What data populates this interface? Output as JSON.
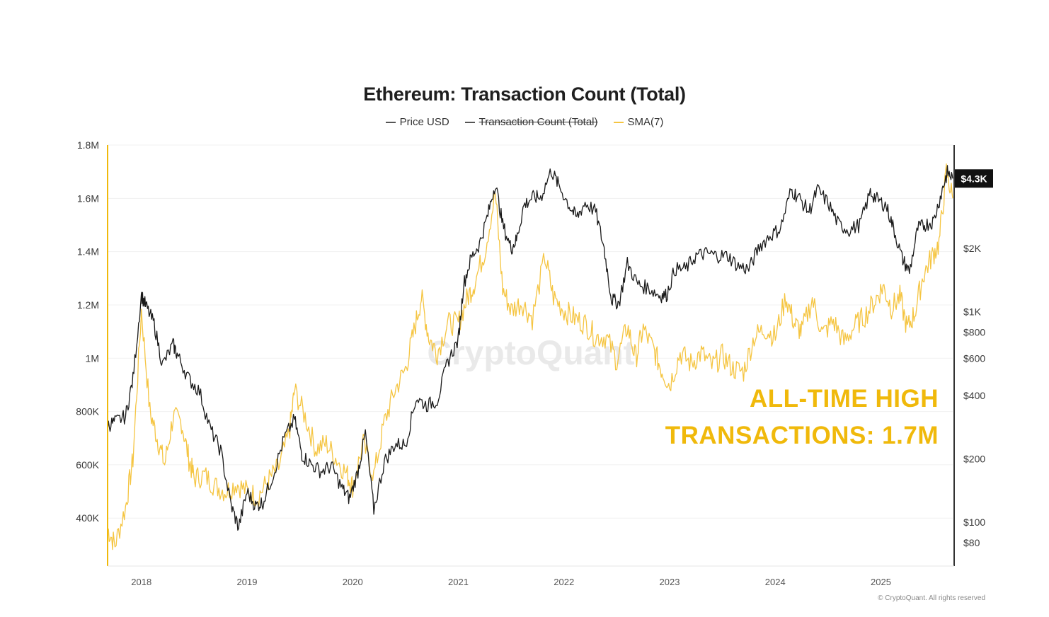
{
  "chart_data": {
    "type": "line",
    "title": "Ethereum: Transaction Count (Total)",
    "legend": [
      {
        "name": "Price USD",
        "color": "#555555",
        "struck": false
      },
      {
        "name": "Transaction Count (Total)",
        "color": "#555555",
        "struck": true
      },
      {
        "name": "SMA(7)",
        "color": "#f5c542",
        "struck": false
      }
    ],
    "left_axis": {
      "ticks": [
        {
          "value": 400000,
          "label": "400K"
        },
        {
          "value": 600000,
          "label": "600K"
        },
        {
          "value": 800000,
          "label": "800K"
        },
        {
          "value": 1000000,
          "label": "1M"
        },
        {
          "value": 1200000,
          "label": "1.2M"
        },
        {
          "value": 1400000,
          "label": "1.4M"
        },
        {
          "value": 1600000,
          "label": "1.6M"
        },
        {
          "value": 1800000,
          "label": "1.8M"
        }
      ],
      "range": [
        220000,
        1800000
      ],
      "color": "#f0b90b"
    },
    "right_axis": {
      "scale": "log",
      "range": [
        62,
        6200
      ],
      "ticks": [
        {
          "value": 80,
          "label": "$80"
        },
        {
          "value": 100,
          "label": "$100"
        },
        {
          "value": 200,
          "label": "$200"
        },
        {
          "value": 400,
          "label": "$400"
        },
        {
          "value": 600,
          "label": "$600"
        },
        {
          "value": 800,
          "label": "$800"
        },
        {
          "value": 1000,
          "label": "$1K"
        },
        {
          "value": 2000,
          "label": "$2K"
        }
      ],
      "current_label": "$4.3K",
      "current_value": 4300
    },
    "x_axis": {
      "range": [
        2017.68,
        2025.68
      ],
      "ticks": [
        {
          "value": 2018,
          "label": "2018"
        },
        {
          "value": 2019,
          "label": "2019"
        },
        {
          "value": 2020,
          "label": "2020"
        },
        {
          "value": 2021,
          "label": "2021"
        },
        {
          "value": 2022,
          "label": "2022"
        },
        {
          "value": 2023,
          "label": "2023"
        },
        {
          "value": 2024,
          "label": "2024"
        },
        {
          "value": 2025,
          "label": "2025"
        }
      ]
    },
    "grid": "horizontal",
    "series": [
      {
        "name": "Price USD",
        "color": "#1a1a1a",
        "points": [
          [
            2017.68,
            290
          ],
          [
            2017.75,
            300
          ],
          [
            2017.85,
            320
          ],
          [
            2017.92,
            480
          ],
          [
            2018.0,
            1200
          ],
          [
            2018.05,
            1050
          ],
          [
            2018.12,
            880
          ],
          [
            2018.2,
            560
          ],
          [
            2018.3,
            700
          ],
          [
            2018.35,
            610
          ],
          [
            2018.45,
            480
          ],
          [
            2018.55,
            420
          ],
          [
            2018.65,
            280
          ],
          [
            2018.75,
            220
          ],
          [
            2018.85,
            120
          ],
          [
            2018.92,
            95
          ],
          [
            2019.0,
            140
          ],
          [
            2019.08,
            120
          ],
          [
            2019.15,
            125
          ],
          [
            2019.25,
            170
          ],
          [
            2019.35,
            250
          ],
          [
            2019.45,
            310
          ],
          [
            2019.52,
            210
          ],
          [
            2019.6,
            190
          ],
          [
            2019.7,
            175
          ],
          [
            2019.8,
            185
          ],
          [
            2019.9,
            145
          ],
          [
            2019.97,
            130
          ],
          [
            2020.05,
            175
          ],
          [
            2020.12,
            265
          ],
          [
            2020.2,
            115
          ],
          [
            2020.3,
            195
          ],
          [
            2020.4,
            235
          ],
          [
            2020.5,
            235
          ],
          [
            2020.6,
            390
          ],
          [
            2020.7,
            360
          ],
          [
            2020.8,
            380
          ],
          [
            2020.9,
            580
          ],
          [
            2021.0,
            740
          ],
          [
            2021.05,
            1350
          ],
          [
            2021.12,
            1800
          ],
          [
            2021.2,
            2100
          ],
          [
            2021.28,
            2900
          ],
          [
            2021.35,
            4100
          ],
          [
            2021.42,
            2600
          ],
          [
            2021.5,
            2000
          ],
          [
            2021.55,
            2200
          ],
          [
            2021.62,
            3200
          ],
          [
            2021.7,
            3500
          ],
          [
            2021.78,
            3500
          ],
          [
            2021.88,
            4700
          ],
          [
            2021.95,
            4000
          ],
          [
            2022.05,
            3200
          ],
          [
            2022.12,
            2800
          ],
          [
            2022.2,
            3300
          ],
          [
            2022.3,
            3000
          ],
          [
            2022.38,
            2000
          ],
          [
            2022.45,
            1150
          ],
          [
            2022.52,
            1100
          ],
          [
            2022.6,
            1700
          ],
          [
            2022.7,
            1350
          ],
          [
            2022.8,
            1300
          ],
          [
            2022.9,
            1200
          ],
          [
            2022.97,
            1200
          ],
          [
            2023.05,
            1600
          ],
          [
            2023.15,
            1600
          ],
          [
            2023.25,
            1850
          ],
          [
            2023.35,
            1900
          ],
          [
            2023.45,
            1850
          ],
          [
            2023.55,
            1850
          ],
          [
            2023.65,
            1650
          ],
          [
            2023.75,
            1600
          ],
          [
            2023.85,
            2050
          ],
          [
            2023.95,
            2300
          ],
          [
            2024.05,
            2500
          ],
          [
            2024.15,
            3800
          ],
          [
            2024.22,
            3500
          ],
          [
            2024.32,
            3000
          ],
          [
            2024.4,
            3800
          ],
          [
            2024.5,
            3300
          ],
          [
            2024.6,
            2600
          ],
          [
            2024.7,
            2450
          ],
          [
            2024.8,
            2600
          ],
          [
            2024.9,
            3700
          ],
          [
            2024.97,
            3400
          ],
          [
            2025.05,
            3200
          ],
          [
            2025.12,
            2500
          ],
          [
            2025.2,
            1800
          ],
          [
            2025.27,
            1550
          ],
          [
            2025.35,
            2500
          ],
          [
            2025.42,
            2600
          ],
          [
            2025.5,
            2700
          ],
          [
            2025.58,
            3800
          ],
          [
            2025.63,
            4600
          ],
          [
            2025.68,
            4300
          ]
        ]
      },
      {
        "name": "SMA(7)",
        "color": "#f5c542",
        "points": [
          [
            2017.68,
            360000
          ],
          [
            2017.75,
            300000
          ],
          [
            2017.85,
            440000
          ],
          [
            2017.92,
            620000
          ],
          [
            2018.0,
            1180000
          ],
          [
            2018.08,
            800000
          ],
          [
            2018.15,
            700000
          ],
          [
            2018.22,
            600000
          ],
          [
            2018.3,
            780000
          ],
          [
            2018.38,
            760000
          ],
          [
            2018.45,
            620000
          ],
          [
            2018.5,
            550000
          ],
          [
            2018.6,
            560000
          ],
          [
            2018.7,
            520000
          ],
          [
            2018.8,
            500000
          ],
          [
            2018.9,
            530000
          ],
          [
            2019.0,
            500000
          ],
          [
            2019.1,
            480000
          ],
          [
            2019.2,
            540000
          ],
          [
            2019.3,
            590000
          ],
          [
            2019.4,
            720000
          ],
          [
            2019.45,
            880000
          ],
          [
            2019.55,
            780000
          ],
          [
            2019.65,
            660000
          ],
          [
            2019.75,
            680000
          ],
          [
            2019.85,
            620000
          ],
          [
            2019.95,
            560000
          ],
          [
            2020.0,
            520000
          ],
          [
            2020.1,
            680000
          ],
          [
            2020.2,
            560000
          ],
          [
            2020.3,
            760000
          ],
          [
            2020.4,
            880000
          ],
          [
            2020.5,
            960000
          ],
          [
            2020.58,
            1100000
          ],
          [
            2020.65,
            1230000
          ],
          [
            2020.72,
            1080000
          ],
          [
            2020.8,
            1020000
          ],
          [
            2020.9,
            1130000
          ],
          [
            2021.0,
            1130000
          ],
          [
            2021.08,
            1220000
          ],
          [
            2021.15,
            1280000
          ],
          [
            2021.25,
            1400000
          ],
          [
            2021.35,
            1620000
          ],
          [
            2021.42,
            1260000
          ],
          [
            2021.5,
            1180000
          ],
          [
            2021.6,
            1210000
          ],
          [
            2021.7,
            1150000
          ],
          [
            2021.82,
            1380000
          ],
          [
            2021.9,
            1230000
          ],
          [
            2022.0,
            1180000
          ],
          [
            2022.1,
            1150000
          ],
          [
            2022.2,
            1130000
          ],
          [
            2022.3,
            1080000
          ],
          [
            2022.4,
            1080000
          ],
          [
            2022.5,
            990000
          ],
          [
            2022.6,
            1120000
          ],
          [
            2022.68,
            1000000
          ],
          [
            2022.75,
            1110000
          ],
          [
            2022.85,
            1030000
          ],
          [
            2022.92,
            960000
          ],
          [
            2023.0,
            900000
          ],
          [
            2023.1,
            1020000
          ],
          [
            2023.2,
            980000
          ],
          [
            2023.3,
            1020000
          ],
          [
            2023.4,
            970000
          ],
          [
            2023.5,
            1010000
          ],
          [
            2023.6,
            960000
          ],
          [
            2023.7,
            950000
          ],
          [
            2023.8,
            1080000
          ],
          [
            2023.9,
            1110000
          ],
          [
            2024.0,
            1080000
          ],
          [
            2024.1,
            1230000
          ],
          [
            2024.18,
            1130000
          ],
          [
            2024.25,
            1100000
          ],
          [
            2024.35,
            1220000
          ],
          [
            2024.45,
            1090000
          ],
          [
            2024.55,
            1140000
          ],
          [
            2024.65,
            1060000
          ],
          [
            2024.75,
            1120000
          ],
          [
            2024.85,
            1160000
          ],
          [
            2024.95,
            1220000
          ],
          [
            2025.02,
            1270000
          ],
          [
            2025.1,
            1190000
          ],
          [
            2025.18,
            1230000
          ],
          [
            2025.25,
            1110000
          ],
          [
            2025.32,
            1170000
          ],
          [
            2025.4,
            1310000
          ],
          [
            2025.48,
            1380000
          ],
          [
            2025.55,
            1430000
          ],
          [
            2025.62,
            1700000
          ],
          [
            2025.68,
            1600000
          ]
        ]
      }
    ],
    "annotations": [
      "ALL-TIME HIGH",
      "TRANSACTIONS: 1.7M"
    ],
    "watermark": "CryptoQuant",
    "copyright": "© CryptoQuant. All rights reserved"
  }
}
